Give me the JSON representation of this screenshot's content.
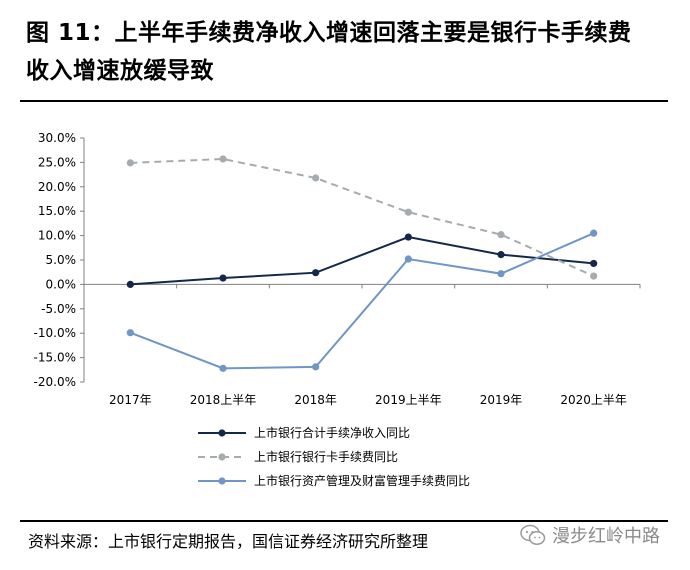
{
  "header": {
    "title_line1": "图 11：上半年手续费净收入增速回落主要是银行卡手续费",
    "title_line2": "收入增速放缓导致"
  },
  "footer": {
    "source": "资料来源：上市银行定期报告，国信证券经济研究所整理",
    "watermark": "漫步红岭中路"
  },
  "chart_data": {
    "type": "line",
    "title": "",
    "categories": [
      "2017年",
      "2018上半年",
      "2018年",
      "2019上半年",
      "2019年",
      "2020上半年"
    ],
    "y_ticks": [
      "30.0%",
      "25.0%",
      "20.0%",
      "15.0%",
      "10.0%",
      "5.0%",
      "0.0%",
      "-5.0%",
      "-10.0%",
      "-15.0%",
      "-20.0%"
    ],
    "ylim": [
      -20,
      30
    ],
    "grid": false,
    "legend_position": "bottom",
    "series": [
      {
        "name": "上市银行合计手续净收入同比",
        "color": "#16284a",
        "dash": "solid",
        "values": [
          0.0,
          1.3,
          2.4,
          9.7,
          6.1,
          4.3
        ]
      },
      {
        "name": "上市银行银行卡手续费同比",
        "color": "#a6abb0",
        "dash": "dashed",
        "values": [
          24.9,
          25.7,
          21.8,
          14.8,
          10.2,
          1.7
        ]
      },
      {
        "name": "上市银行资产管理及财富管理手续费同比",
        "color": "#6f96c4",
        "dash": "solid",
        "values": [
          -9.9,
          -17.2,
          -16.9,
          5.2,
          2.2,
          10.5
        ]
      }
    ]
  }
}
